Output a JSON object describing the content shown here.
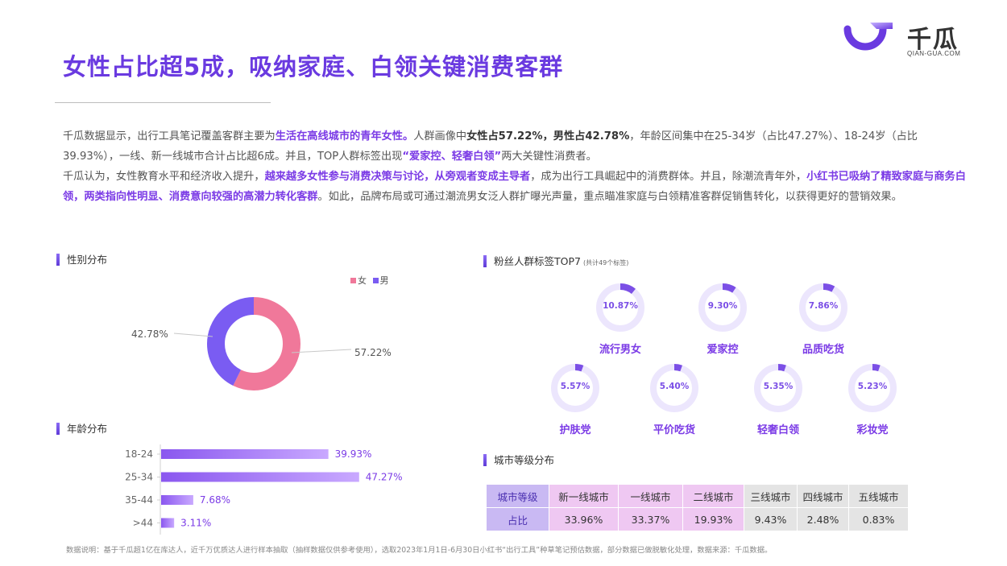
{
  "title": "女性占比超5成，吸纳家庭、白领关键消费客群",
  "logo": {
    "name": "千瓜",
    "sub": "QIAN-GUA.COM"
  },
  "paragraph1": {
    "p1": "千瓜数据显示，出行工具笔记覆盖客群主要为",
    "h1": "生活在高线城市的青年女性。",
    "p2": "人群画像中",
    "b1": "女性占57.22%，男性占42.78%",
    "p3": "，年龄区间集中在25-34岁（占比47.27%）、18-24岁（占比39.93%），一线、新一线城市合计占比超6成。并且，TOP人群标签出现",
    "h2": "“爱家控、轻奢白领”",
    "p4": "两大关键性消费者。"
  },
  "paragraph2": {
    "p1": "千瓜认为，女性教育水平和经济收入提升，",
    "h1": "越来越多女性参与消费决策与讨论，从旁观者变成主导者",
    "p2": "，成为出行工具崛起中的消费群体。并且，除潮流青年外，",
    "h2": "小红书已吸纳了精致家庭与商务白领，两类指向性明显、消费意向较强的高潜力转化客群",
    "p3": "。如此，品牌布局或可通过潮流男女泛人群扩曝光声量，重点瞄准家庭与白领精准客群促销售转化，以获得更好的营销效果。"
  },
  "gender": {
    "section_title": "性别分布",
    "legend_female": "女",
    "legend_male": "男",
    "female_label": "57.22%",
    "male_label": "42.78%"
  },
  "age": {
    "section_title": "年龄分布"
  },
  "tags": {
    "section_title": "粉丝人群标签TOP7",
    "section_note": "(共计49个标签)",
    "items": [
      {
        "name": "流行男女",
        "label": "10.87%"
      },
      {
        "name": "爱家控",
        "label": "9.30%"
      },
      {
        "name": "品质吃货",
        "label": "7.86%"
      },
      {
        "name": "护肤党",
        "label": "5.57%"
      },
      {
        "name": "平价吃货",
        "label": "5.40%"
      },
      {
        "name": "轻奢白领",
        "label": "5.35%"
      },
      {
        "name": "彩妆党",
        "label": "5.23%"
      }
    ]
  },
  "city": {
    "section_title": "城市等级分布",
    "row1_head": "城市等级",
    "row2_head": "占比",
    "levels": [
      "新一线城市",
      "一线城市",
      "二线城市",
      "三线城市",
      "四线城市",
      "五线城市"
    ],
    "shares": [
      "33.96%",
      "33.37%",
      "19.93%",
      "9.43%",
      "2.48%",
      "0.83%"
    ]
  },
  "footnote": "数据说明：基于千瓜超1亿在库达人，近千万优质达人进行样本抽取（抽样数据仅供参考使用），选取2023年1月1日-6月30日小红书“出行工具”种草笔记预估数据，部分数据已做脱敏化处理，数据来源：千瓜数据。",
  "colors": {
    "accent": "#7b3be6",
    "female": "#f0789a",
    "male": "#7a5cf2",
    "table_head": "#c9b9f3",
    "table_hot": "#efc8f2",
    "table_cold": "#e4e4e4"
  },
  "chart_data": [
    {
      "type": "pie",
      "title": "性别分布",
      "series": [
        {
          "name": "女",
          "value": 57.22
        },
        {
          "name": "男",
          "value": 42.78
        }
      ]
    },
    {
      "type": "bar",
      "title": "年龄分布",
      "categories": [
        "18-24",
        "25-34",
        "35-44",
        ">44"
      ],
      "values": [
        39.93,
        47.27,
        7.68,
        3.11
      ],
      "labels": [
        "39.93%",
        "47.27%",
        "7.68%",
        "3.11%"
      ],
      "orientation": "horizontal"
    },
    {
      "type": "pie",
      "title": "粉丝人群标签TOP7",
      "categories": [
        "流行男女",
        "爱家控",
        "品质吃货",
        "护肤党",
        "平价吃货",
        "轻奢白领",
        "彩妆党"
      ],
      "values": [
        10.87,
        9.3,
        7.86,
        5.57,
        5.4,
        5.35,
        5.23
      ]
    }
  ]
}
